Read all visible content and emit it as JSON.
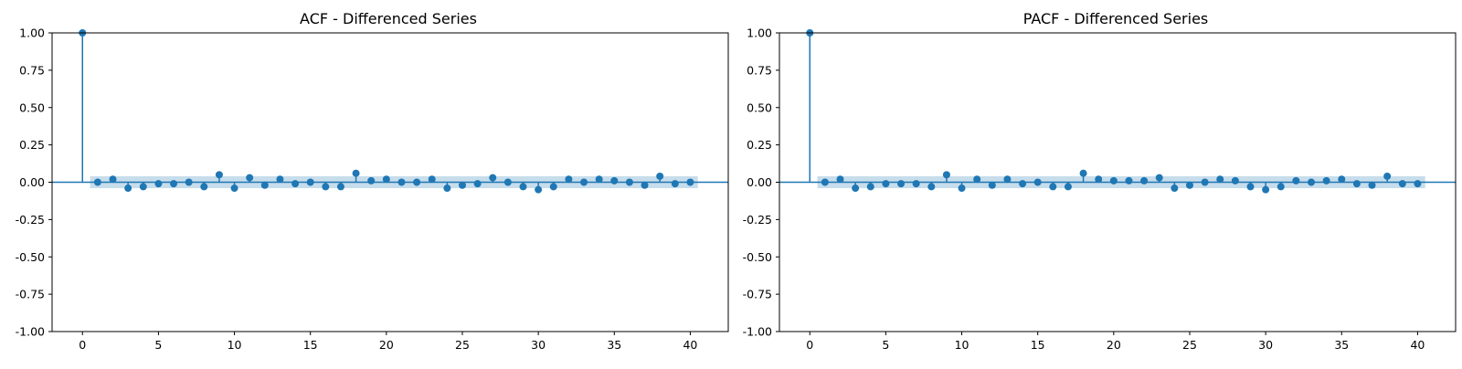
{
  "chart_data": [
    {
      "type": "stem",
      "title": "ACF - Differenced Series",
      "xlabel": "",
      "ylabel": "",
      "xlim": [
        -2,
        42.5
      ],
      "ylim": [
        -1.0,
        1.0
      ],
      "x_ticks": [
        0,
        5,
        10,
        15,
        20,
        25,
        30,
        35,
        40
      ],
      "x_tick_labels": [
        "0",
        "5",
        "10",
        "15",
        "20",
        "25",
        "30",
        "35",
        "40"
      ],
      "y_ticks": [
        1.0,
        0.75,
        0.5,
        0.25,
        0.0,
        -0.25,
        -0.5,
        -0.75,
        -1.0
      ],
      "y_tick_labels": [
        "1.00",
        "0.75",
        "0.50",
        "0.25",
        "0.00",
        "-0.25",
        "-0.50",
        "-0.75",
        "-1.00"
      ],
      "grid": false,
      "confidence_band": {
        "from_lag": 0.5,
        "to_lag": 40.5,
        "lower": -0.04,
        "upper": 0.04
      },
      "lags": [
        0,
        1,
        2,
        3,
        4,
        5,
        6,
        7,
        8,
        9,
        10,
        11,
        12,
        13,
        14,
        15,
        16,
        17,
        18,
        19,
        20,
        21,
        22,
        23,
        24,
        25,
        26,
        27,
        28,
        29,
        30,
        31,
        32,
        33,
        34,
        35,
        36,
        37,
        38,
        39,
        40
      ],
      "values": [
        1.0,
        0.0,
        0.02,
        -0.04,
        -0.03,
        -0.01,
        -0.01,
        0.0,
        -0.03,
        0.05,
        -0.04,
        0.03,
        -0.02,
        0.02,
        -0.01,
        0.0,
        -0.03,
        -0.03,
        0.06,
        0.01,
        0.02,
        0.0,
        0.0,
        0.02,
        -0.04,
        -0.02,
        -0.01,
        0.03,
        0.0,
        -0.03,
        -0.05,
        -0.03,
        0.02,
        0.0,
        0.02,
        0.01,
        0.0,
        -0.02,
        0.04,
        -0.01,
        0.0
      ],
      "colors": {
        "stem": "#1f77b4",
        "band": "#1f77b4",
        "zero_line": "#1f77b4"
      }
    },
    {
      "type": "stem",
      "title": "PACF - Differenced Series",
      "xlabel": "",
      "ylabel": "",
      "xlim": [
        -2,
        42.5
      ],
      "ylim": [
        -1.0,
        1.0
      ],
      "x_ticks": [
        0,
        5,
        10,
        15,
        20,
        25,
        30,
        35,
        40
      ],
      "x_tick_labels": [
        "0",
        "5",
        "10",
        "15",
        "20",
        "25",
        "30",
        "35",
        "40"
      ],
      "y_ticks": [
        1.0,
        0.75,
        0.5,
        0.25,
        0.0,
        -0.25,
        -0.5,
        -0.75,
        -1.0
      ],
      "y_tick_labels": [
        "1.00",
        "0.75",
        "0.50",
        "0.25",
        "0.00",
        "-0.25",
        "-0.50",
        "-0.75",
        "-1.00"
      ],
      "grid": false,
      "confidence_band": {
        "from_lag": 0.5,
        "to_lag": 40.5,
        "lower": -0.04,
        "upper": 0.04
      },
      "lags": [
        0,
        1,
        2,
        3,
        4,
        5,
        6,
        7,
        8,
        9,
        10,
        11,
        12,
        13,
        14,
        15,
        16,
        17,
        18,
        19,
        20,
        21,
        22,
        23,
        24,
        25,
        26,
        27,
        28,
        29,
        30,
        31,
        32,
        33,
        34,
        35,
        36,
        37,
        38,
        39,
        40
      ],
      "values": [
        1.0,
        0.0,
        0.02,
        -0.04,
        -0.03,
        -0.01,
        -0.01,
        -0.01,
        -0.03,
        0.05,
        -0.04,
        0.02,
        -0.02,
        0.02,
        -0.01,
        0.0,
        -0.03,
        -0.03,
        0.06,
        0.02,
        0.01,
        0.01,
        0.01,
        0.03,
        -0.04,
        -0.02,
        0.0,
        0.02,
        0.01,
        -0.03,
        -0.05,
        -0.03,
        0.01,
        0.0,
        0.01,
        0.02,
        -0.01,
        -0.02,
        0.04,
        -0.01,
        -0.01
      ],
      "colors": {
        "stem": "#1f77b4",
        "band": "#1f77b4",
        "zero_line": "#1f77b4"
      }
    }
  ]
}
